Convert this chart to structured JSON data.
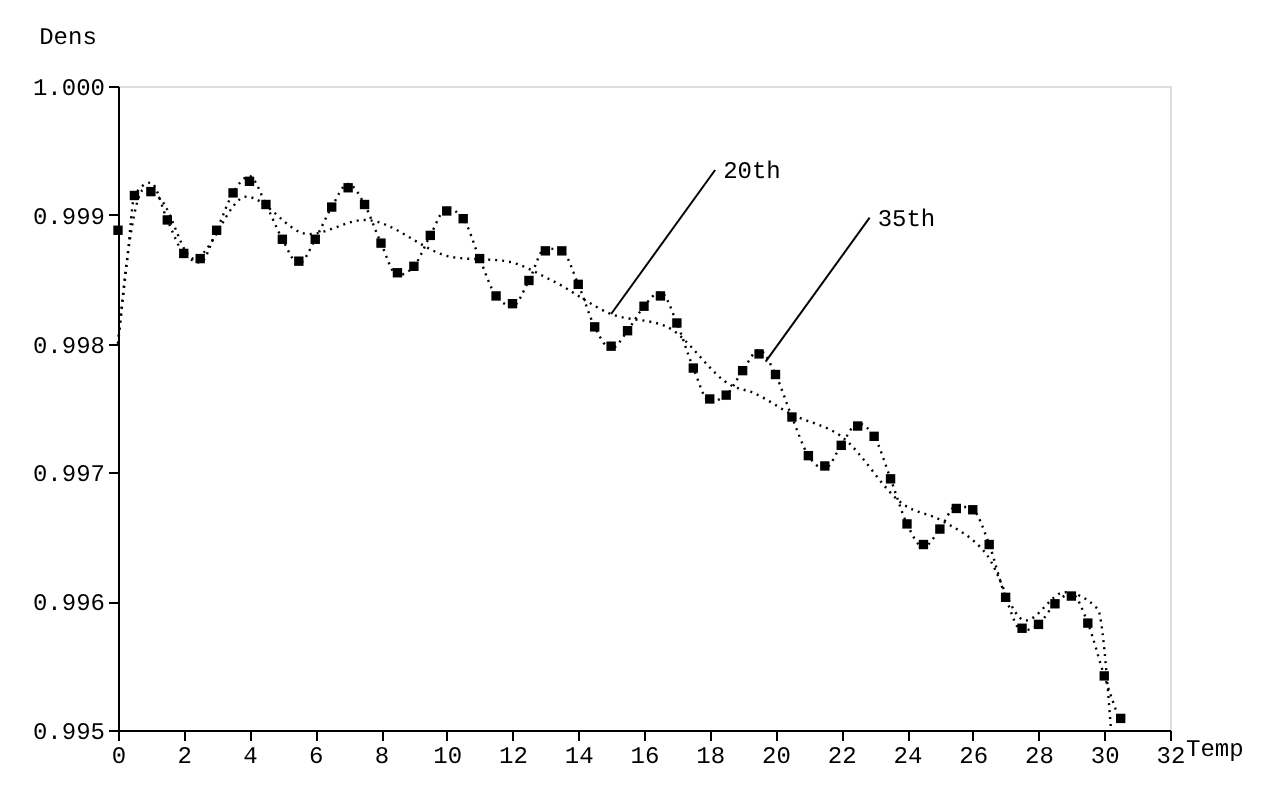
{
  "chart_data": {
    "type": "line",
    "xlabel": "Temp",
    "ylabel": "Dens",
    "xlim": [
      0,
      32
    ],
    "ylim": [
      0.995,
      1.0
    ],
    "xticks": [
      0,
      2,
      4,
      6,
      8,
      10,
      12,
      14,
      16,
      18,
      20,
      22,
      24,
      26,
      28,
      30,
      32
    ],
    "yticks": [
      0.995,
      0.996,
      0.997,
      0.998,
      0.999,
      {
        "value": 1.0,
        "label": "1.000"
      }
    ],
    "grid": false,
    "series": [
      {
        "type": "scatter",
        "marker": "square",
        "color": "#000000",
        "x": [
          0,
          0.5,
          1,
          1.5,
          2,
          2.5,
          3,
          3.5,
          4,
          4.5,
          5,
          5.5,
          6,
          6.5,
          7,
          7.5,
          8,
          8.5,
          9,
          9.5,
          10,
          10.5,
          11,
          11.5,
          12,
          12.5,
          13,
          13.5,
          14,
          14.5,
          15,
          15.5,
          16,
          16.5,
          17,
          17.5,
          18,
          18.5,
          19,
          19.5,
          20,
          20.5,
          21,
          21.5,
          22,
          22.5,
          23,
          23.5,
          24,
          24.5,
          25,
          25.5,
          26,
          26.5,
          27,
          27.5,
          28,
          28.5,
          29,
          29.5,
          30,
          30.5
        ],
        "values": [
          0.99888,
          0.99915,
          0.99918,
          0.99896,
          0.9987,
          0.99866,
          0.99888,
          0.99917,
          0.99926,
          0.99908,
          0.99881,
          0.99864,
          0.99881,
          0.99906,
          0.99921,
          0.99908,
          0.99878,
          0.99855,
          0.9986,
          0.99884,
          0.99903,
          0.99897,
          0.99866,
          0.99837,
          0.99831,
          0.99849,
          0.99872,
          0.99872,
          0.99846,
          0.99813,
          0.99798,
          0.9981,
          0.99829,
          0.99837,
          0.99816,
          0.99781,
          0.99757,
          0.9976,
          0.99779,
          0.99792,
          0.99776,
          0.99743,
          0.99713,
          0.99705,
          0.99721,
          0.99736,
          0.99728,
          0.99695,
          0.9966,
          0.99644,
          0.99656,
          0.99672,
          0.99671,
          0.99644,
          0.99603,
          0.99579,
          0.99582,
          0.99598,
          0.99604,
          0.99583,
          0.99542,
          0.99509
        ]
      },
      {
        "type": "line",
        "line_style": "dotted",
        "color": "#000000",
        "x": [
          0,
          0.3,
          0.5,
          1,
          1.5,
          2,
          2.5,
          3,
          3.5,
          4,
          4.5,
          5,
          5.5,
          6,
          6.5,
          7,
          7.5,
          8,
          8.5,
          9,
          9.5,
          10,
          10.5,
          11,
          11.5,
          12,
          12.5,
          13,
          13.5,
          14,
          14.5,
          15,
          15.5,
          16,
          16.5,
          17,
          17.5,
          18,
          18.5,
          19,
          19.5,
          20,
          20.5,
          21,
          21.5,
          22,
          22.5,
          23,
          23.5,
          24,
          24.5,
          25,
          25.5,
          26,
          26.5,
          27,
          27.5,
          28,
          28.5,
          29,
          29.5,
          30,
          30.5
        ],
        "values": [
          0.998,
          0.9987,
          0.99915,
          0.99925,
          0.99896,
          0.9987,
          0.99863,
          0.99888,
          0.99917,
          0.9993,
          0.99908,
          0.99881,
          0.99862,
          0.99881,
          0.99906,
          0.99924,
          0.99908,
          0.99878,
          0.99853,
          0.9986,
          0.99884,
          0.99905,
          0.99897,
          0.99866,
          0.99837,
          0.99829,
          0.99849,
          0.99874,
          0.99872,
          0.99846,
          0.99813,
          0.99796,
          0.9981,
          0.99829,
          0.9984,
          0.99816,
          0.99781,
          0.99755,
          0.9976,
          0.99779,
          0.99795,
          0.99776,
          0.99743,
          0.99713,
          0.99703,
          0.99721,
          0.99738,
          0.99728,
          0.99695,
          0.9966,
          0.99642,
          0.99656,
          0.99674,
          0.99671,
          0.99644,
          0.99603,
          0.99577,
          0.99582,
          0.99598,
          0.99606,
          0.99583,
          0.99542,
          0.99505
        ]
      },
      {
        "type": "line",
        "line_style": "dotted",
        "color": "#000000",
        "x": [
          0,
          0.3,
          0.8,
          1.3,
          2.3,
          3.9,
          5.8,
          7.5,
          10.2,
          11.8,
          13.2,
          15,
          16.7,
          18.7,
          19.3,
          20.5,
          22,
          23.9,
          25.1,
          26.4,
          27.6,
          28.8,
          29.8,
          30.2
        ],
        "values": [
          0.998,
          0.9987,
          0.9992,
          0.99912,
          0.99866,
          0.99914,
          0.99885,
          0.99896,
          0.99867,
          0.99864,
          0.99849,
          0.99823,
          0.99813,
          0.99767,
          0.99762,
          0.99745,
          0.99728,
          0.99675,
          0.99662,
          0.99637,
          0.99585,
          0.99607,
          0.99594,
          0.99502
        ]
      }
    ],
    "annotations": [
      {
        "text": "20th",
        "x": 15,
        "y": 0.99823
      },
      {
        "text": "35th",
        "x": 19.7,
        "y": 0.99786
      }
    ]
  }
}
